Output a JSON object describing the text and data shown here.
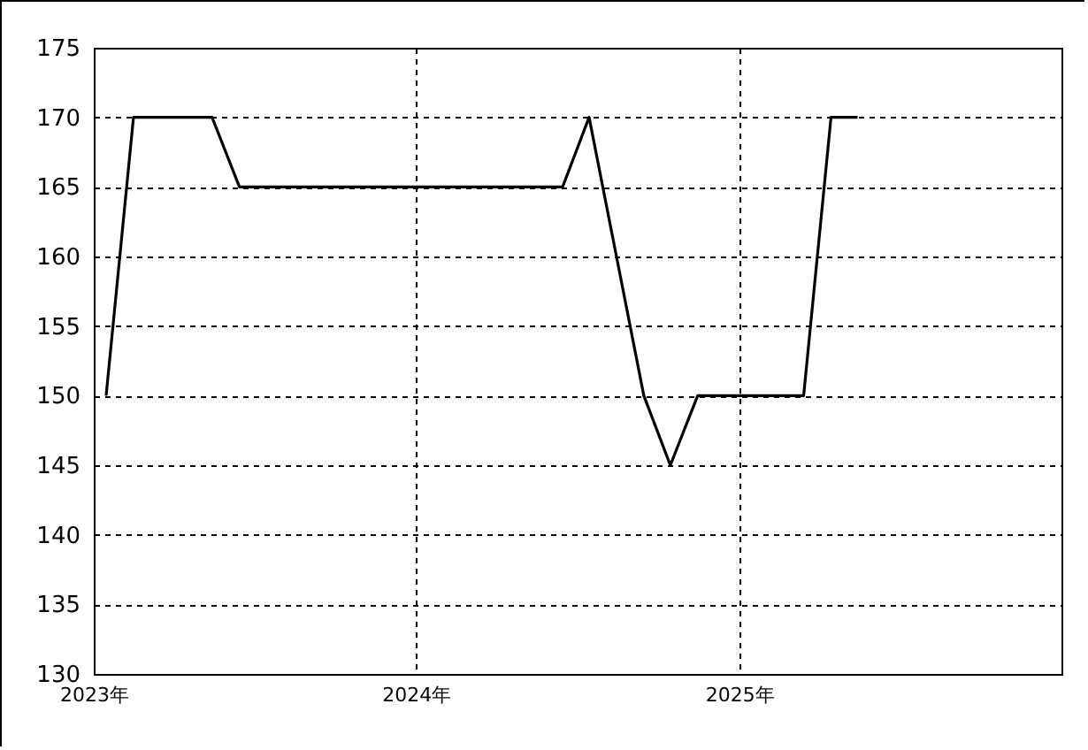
{
  "chart_data": {
    "type": "line",
    "x": [
      "2023-01-15",
      "2023-02-15",
      "2023-03-15",
      "2023-04-15",
      "2023-05-15",
      "2023-06-15",
      "2023-07-15",
      "2023-08-15",
      "2023-09-15",
      "2023-10-15",
      "2023-11-15",
      "2023-12-15",
      "2024-01-15",
      "2024-02-15",
      "2024-03-15",
      "2024-04-15",
      "2024-05-15",
      "2024-06-15",
      "2024-07-15",
      "2024-08-15",
      "2024-09-15",
      "2024-10-15",
      "2024-11-15",
      "2024-12-15",
      "2025-01-15",
      "2025-02-15",
      "2025-03-15",
      "2025-04-15",
      "2025-05-15"
    ],
    "series": [
      {
        "color": "#000000",
        "values": [
          150,
          170,
          170,
          170,
          170,
          165,
          165,
          165,
          165,
          165,
          165,
          165,
          165,
          165,
          165,
          165,
          165,
          165,
          170,
          160,
          150,
          145,
          150,
          150,
          150,
          150,
          150,
          170,
          170
        ]
      }
    ],
    "xlim": [
      "2023-01-01",
      "2026-01-01"
    ],
    "xticks": [
      {
        "value": "2023-01-01",
        "label": "2023年"
      },
      {
        "value": "2024-01-01",
        "label": "2024年"
      },
      {
        "value": "2025-01-01",
        "label": "2025年"
      }
    ],
    "ylim": [
      130,
      175
    ],
    "yticks": [
      130,
      135,
      140,
      145,
      150,
      155,
      160,
      165,
      170,
      175
    ],
    "grid": true,
    "marker": "none",
    "line_style": "solid"
  }
}
